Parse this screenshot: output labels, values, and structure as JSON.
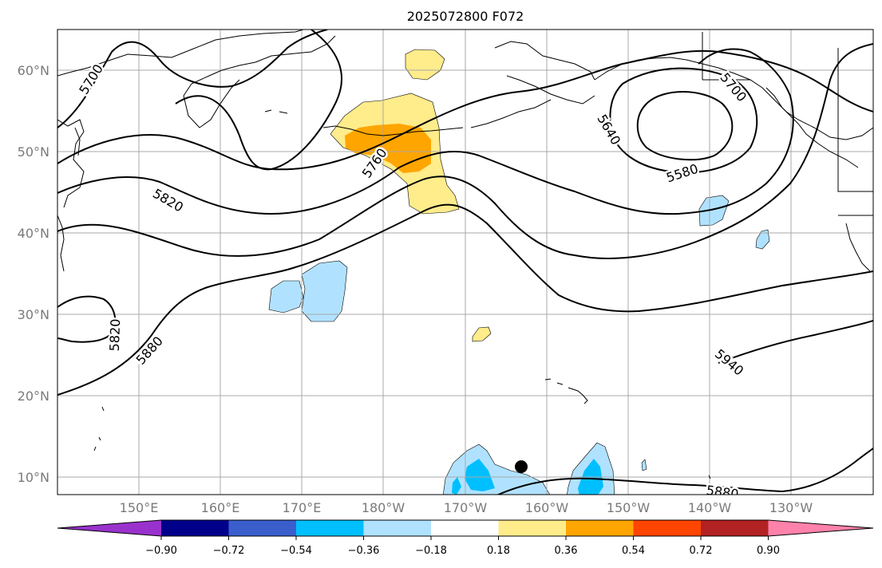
{
  "title": "2025072800 F072",
  "axes": {
    "lat_labels": [
      "10°N",
      "20°N",
      "30°N",
      "40°N",
      "50°N",
      "60°N"
    ],
    "lon_labels": [
      "150°E",
      "160°E",
      "170°E",
      "180°W",
      "170°W",
      "160°W",
      "150°W",
      "140°W",
      "130°W"
    ]
  },
  "contour_labels": [
    "5700",
    "5760",
    "5640",
    "5700",
    "5580",
    "5820",
    "5820",
    "5880",
    "5940",
    "5880"
  ],
  "colorbar": {
    "tick_labels": [
      "−0.90",
      "−0.72",
      "−0.54",
      "−0.36",
      "−0.18",
      "0.18",
      "0.36",
      "0.54",
      "0.72",
      "0.90"
    ],
    "colors": [
      "#9932cc",
      "#00008b",
      "#3a5fcd",
      "#00bfff",
      "#b0e2ff",
      "#ffffff",
      "#ffec8b",
      "#ffa500",
      "#ff4500",
      "#b22222",
      "#ff82ab"
    ]
  },
  "shade_colors": {
    "light_blue": "#b0e2ff",
    "deep_sky_blue": "#00bfff",
    "light_yellow": "#ffec8b",
    "orange": "#ffa500"
  },
  "marker": {
    "name": "storm-center",
    "color": "#000000"
  }
}
